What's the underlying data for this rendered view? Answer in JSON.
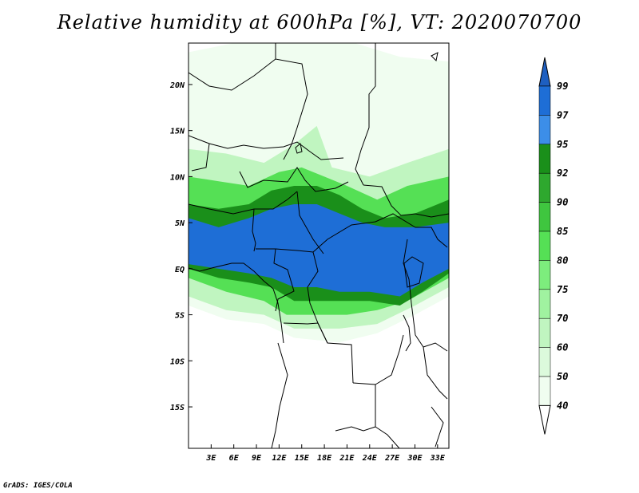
{
  "title": "Relative humidity at 600hPa [%], VT: 2020070700",
  "credit": "GrADS: IGES/COLA",
  "map": {
    "lon_ticks": [
      "3E",
      "6E",
      "9E",
      "12E",
      "15E",
      "18E",
      "21E",
      "24E",
      "27E",
      "30E",
      "33E"
    ],
    "lat_ticks": [
      "20N",
      "15N",
      "10N",
      "5N",
      "EQ",
      "5S",
      "10S",
      "15S"
    ]
  },
  "colorbar": {
    "labels": [
      "99",
      "97",
      "95",
      "92",
      "90",
      "85",
      "80",
      "75",
      "70",
      "60",
      "50",
      "40"
    ],
    "colors": [
      "#1e6ed6",
      "#1e6ed6",
      "#3c8ee8",
      "#1a8f1a",
      "#2ea82e",
      "#3fc63f",
      "#55e055",
      "#7ded7d",
      "#a0f2a0",
      "#c0f5c0",
      "#dcfadc",
      "#f0fdf0"
    ],
    "over_color": "#1e5fc0",
    "under_color": "#ffffff"
  },
  "chart_data": {
    "type": "heatmap",
    "variable": "Relative humidity at 600hPa [%]",
    "valid_time": "2020070700",
    "lon_range": [
      0,
      34.5
    ],
    "lat_range": [
      -19.5,
      24.5
    ],
    "levels": [
      40,
      50,
      60,
      70,
      75,
      80,
      85,
      90,
      92,
      95,
      97,
      99
    ],
    "bands": [
      {
        "level": 40,
        "north": [
          [
            0,
            23.5
          ],
          [
            6,
            24.5
          ],
          [
            12,
            24.5
          ],
          [
            17,
            24.5
          ],
          [
            22,
            24.5
          ],
          [
            28,
            23
          ],
          [
            34.5,
            22.5
          ]
        ],
        "south": [
          [
            0,
            12
          ],
          [
            5,
            12
          ],
          [
            10,
            10
          ],
          [
            14,
            9
          ],
          [
            18,
            9.5
          ],
          [
            22,
            9
          ],
          [
            27,
            7
          ],
          [
            31,
            7
          ],
          [
            34.5,
            8
          ]
        ]
      },
      {
        "level": 40,
        "north": [
          [
            0,
            14.5
          ],
          [
            5,
            13.5
          ],
          [
            10,
            13
          ],
          [
            14,
            15
          ],
          [
            17,
            20
          ],
          [
            19,
            21
          ],
          [
            21,
            12
          ],
          [
            25,
            10.5
          ],
          [
            30,
            13
          ],
          [
            34.5,
            15.5
          ]
        ],
        "south": [
          [
            0,
            -4
          ],
          [
            5,
            -5.5
          ],
          [
            10,
            -6
          ],
          [
            14,
            -7.5
          ],
          [
            20,
            -8
          ],
          [
            25,
            -7
          ],
          [
            30,
            -5
          ],
          [
            34.5,
            -3
          ]
        ]
      },
      {
        "level": 60,
        "north": [
          [
            0,
            13
          ],
          [
            5,
            12.5
          ],
          [
            10,
            11.5
          ],
          [
            14,
            13.5
          ],
          [
            17,
            15.5
          ],
          [
            19,
            11
          ],
          [
            24,
            10
          ],
          [
            29,
            11.5
          ],
          [
            34.5,
            13
          ]
        ],
        "south": [
          [
            0,
            -3
          ],
          [
            5,
            -4.5
          ],
          [
            10,
            -5
          ],
          [
            14,
            -6.5
          ],
          [
            20,
            -6.5
          ],
          [
            25,
            -6
          ],
          [
            30,
            -4
          ],
          [
            34.5,
            -2
          ]
        ]
      },
      {
        "level": 80,
        "north": [
          [
            0,
            10
          ],
          [
            4,
            9.5
          ],
          [
            8,
            9
          ],
          [
            12,
            10.5
          ],
          [
            15,
            11
          ],
          [
            18,
            10
          ],
          [
            21,
            9
          ],
          [
            25,
            7.5
          ],
          [
            29,
            9
          ],
          [
            34.5,
            10
          ]
        ],
        "south": [
          [
            0,
            -1
          ],
          [
            5,
            -2.5
          ],
          [
            10,
            -3.5
          ],
          [
            13,
            -5
          ],
          [
            17,
            -5
          ],
          [
            21,
            -5
          ],
          [
            25,
            -4.5
          ],
          [
            29,
            -3.5
          ],
          [
            34.5,
            -1
          ]
        ]
      },
      {
        "level": 92,
        "north": [
          [
            0,
            7
          ],
          [
            4,
            6.5
          ],
          [
            8,
            7
          ],
          [
            11,
            8.5
          ],
          [
            14,
            9
          ],
          [
            17,
            9
          ],
          [
            20,
            8
          ],
          [
            23,
            6.5
          ],
          [
            26,
            5.5
          ],
          [
            30,
            6
          ],
          [
            34.5,
            7.5
          ]
        ],
        "south": [
          [
            0,
            0
          ],
          [
            4,
            -1
          ],
          [
            8,
            -1.5
          ],
          [
            11,
            -2
          ],
          [
            14,
            -3.5
          ],
          [
            17,
            -3.5
          ],
          [
            20,
            -3.5
          ],
          [
            24,
            -3.5
          ],
          [
            28,
            -4
          ],
          [
            31,
            -2.5
          ],
          [
            34.5,
            -0.5
          ]
        ]
      },
      {
        "level": 97,
        "north": [
          [
            0,
            5.5
          ],
          [
            4,
            4.5
          ],
          [
            8,
            5.5
          ],
          [
            11,
            6.5
          ],
          [
            14,
            7
          ],
          [
            17,
            7
          ],
          [
            20,
            6
          ],
          [
            23,
            5
          ],
          [
            26,
            4.5
          ],
          [
            30,
            4.5
          ],
          [
            34.5,
            5
          ]
        ],
        "south": [
          [
            0,
            0.5
          ],
          [
            4,
            0
          ],
          [
            8,
            -0.5
          ],
          [
            11,
            -1
          ],
          [
            14,
            -2
          ],
          [
            17,
            -2
          ],
          [
            20,
            -2.5
          ],
          [
            24,
            -2.5
          ],
          [
            28,
            -3
          ],
          [
            31,
            -1.5
          ],
          [
            34.5,
            0
          ]
        ]
      }
    ]
  }
}
